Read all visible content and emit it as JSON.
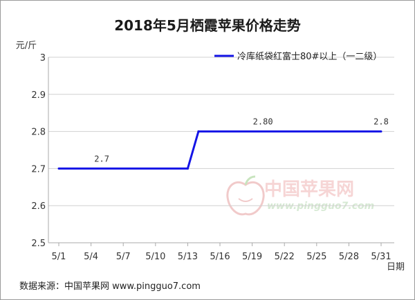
{
  "chart_data": {
    "type": "line",
    "title": "2018年5月栖霞苹果价格走势",
    "ylabel": "元/斤",
    "xlabel": "日期",
    "ylim": [
      2.5,
      3.0
    ],
    "y_ticks": [
      "2.5",
      "2.6",
      "2.7",
      "2.8",
      "2.9",
      "3"
    ],
    "x_ticks": [
      "5/1",
      "5/4",
      "5/7",
      "5/10",
      "5/13",
      "5/16",
      "5/19",
      "5/22",
      "5/25",
      "5/28",
      "5/31"
    ],
    "x_tick_days": [
      1,
      4,
      7,
      10,
      13,
      16,
      19,
      22,
      25,
      28,
      31
    ],
    "grid": true,
    "legend_position": "top-right",
    "series": [
      {
        "name": "冷库纸袋红富士80#以上（一二级）",
        "color": "#1414e6",
        "points": [
          {
            "x": "5/1",
            "day": 1,
            "y": 2.7
          },
          {
            "x": "5/13",
            "day": 13,
            "y": 2.7
          },
          {
            "x": "5/14",
            "day": 14,
            "y": 2.8
          },
          {
            "x": "5/31",
            "day": 31,
            "y": 2.8
          }
        ],
        "data_labels": [
          {
            "day": 5,
            "y": 2.7,
            "text": "2.7"
          },
          {
            "day": 20,
            "y": 2.8,
            "text": "2.80"
          },
          {
            "day": 31,
            "y": 2.8,
            "text": "2.8"
          }
        ]
      }
    ]
  },
  "source": "数据来源：中国苹果网 www.pingguo7.com",
  "watermark": {
    "name": "中国苹果网",
    "url": "www.pingguo7.com"
  }
}
